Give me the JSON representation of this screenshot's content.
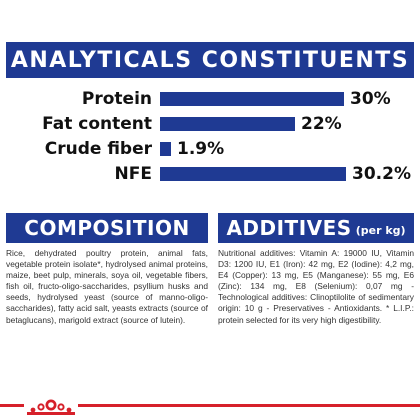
{
  "header": {
    "title": "ANALYTICALS CONSTITUENTS"
  },
  "constituents": [
    {
      "label": "Protein",
      "value": "30%",
      "fraction": 1.0
    },
    {
      "label": "Fat content",
      "value": "22%",
      "fraction": 0.733
    },
    {
      "label": "Crude fiber",
      "value": "1.9%",
      "fraction": 0.063
    },
    {
      "label": "NFE",
      "value": "30.2%",
      "fraction": 1.0
    }
  ],
  "composition": {
    "title": "COMPOSITION",
    "text": "Rice, dehydrated poultry protein, animal fats, vegetable protein isolate*, hydrolysed animal proteins, maize, beet pulp, minerals, soya oil, vegetable fibers, fish oil, fructo-oligo-saccharides, psyllium husks and seeds, hydrolysed yeast (source of manno-oligo-saccharides), fatty acid salt, yeasts extracts (source of betaglucans), marigold extract (source of lutein)."
  },
  "additives": {
    "title": "ADDITIVES",
    "subtitle": "(per kg)",
    "text": "Nutritional additives: Vitamin A: 19000 IU, Vitamin D3: 1200 IU, E1 (Iron): 42 mg, E2 (Iodine): 4,2 mg, E4 (Copper): 13 mg, E5 (Manganese): 55 mg, E6 (Zinc): 134 mg, E8 (Selenium): 0,07 mg - Technological additives: Clinoptilolite of sedimentary origin: 10 g - Preservatives - Antioxidants. * L.I.P.: protein selected for its very high digestibility."
  },
  "colors": {
    "navy": "#1f3a93",
    "red": "#d6202a"
  },
  "logo": {
    "icon": "royal-canin-crown-logo"
  }
}
